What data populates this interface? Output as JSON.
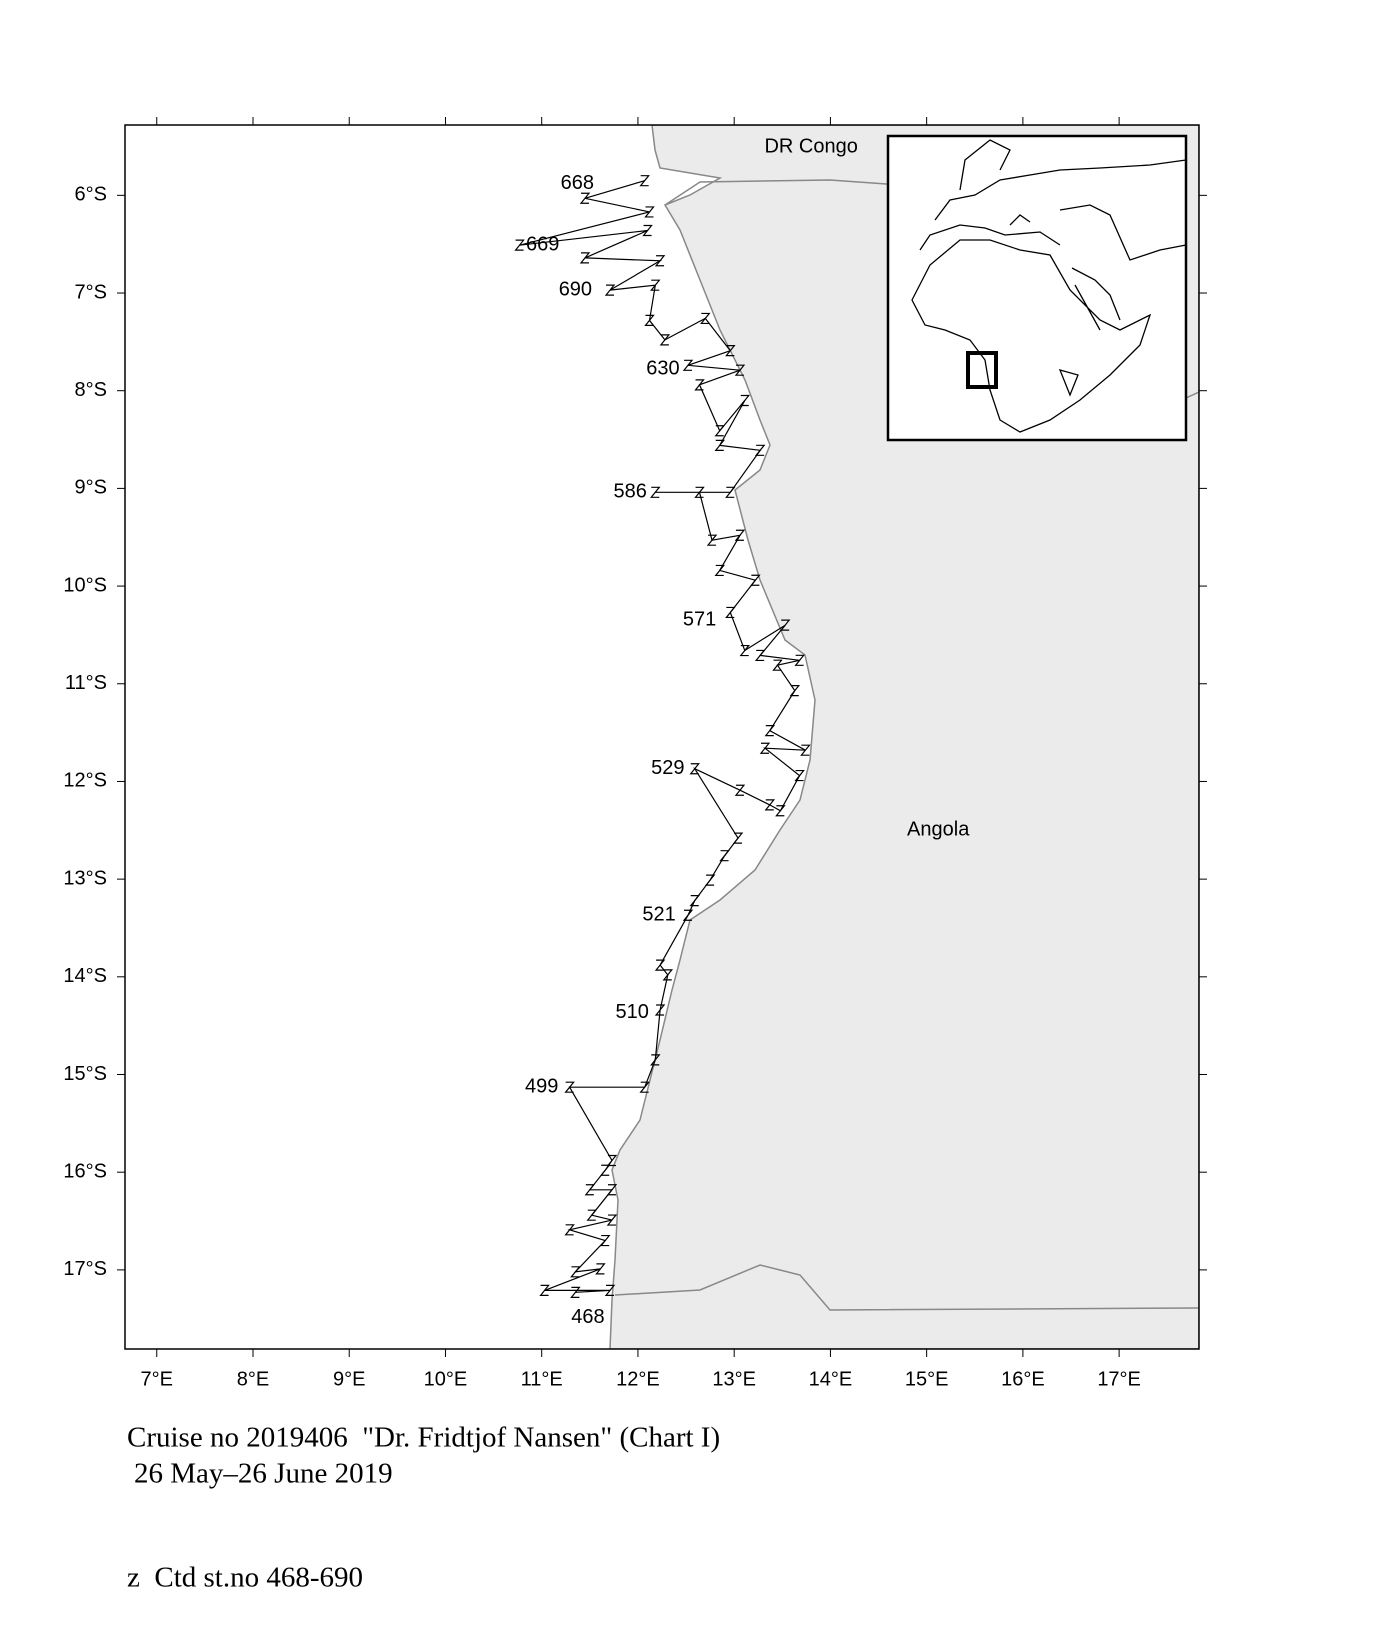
{
  "map": {
    "xlim": [
      6.67,
      17.83
    ],
    "ylim": [
      -17.81,
      -5.28
    ],
    "xticks": [
      {
        "value": 7,
        "label": "7°E"
      },
      {
        "value": 8,
        "label": "8°E"
      },
      {
        "value": 9,
        "label": "9°E"
      },
      {
        "value": 10,
        "label": "10°E"
      },
      {
        "value": 11,
        "label": "11°E"
      },
      {
        "value": 12,
        "label": "12°E"
      },
      {
        "value": 13,
        "label": "13°E"
      },
      {
        "value": 14,
        "label": "14°E"
      },
      {
        "value": 15,
        "label": "15°E"
      },
      {
        "value": 16,
        "label": "16°E"
      },
      {
        "value": 17,
        "label": "17°E"
      }
    ],
    "yticks": [
      {
        "value": -6,
        "label": "6°S"
      },
      {
        "value": -7,
        "label": "7°S"
      },
      {
        "value": -8,
        "label": "8°S"
      },
      {
        "value": -9,
        "label": "9°S"
      },
      {
        "value": -10,
        "label": "10°S"
      },
      {
        "value": -11,
        "label": "11°S"
      },
      {
        "value": -12,
        "label": "12°S"
      },
      {
        "value": -13,
        "label": "13°S"
      },
      {
        "value": -14,
        "label": "14°S"
      },
      {
        "value": -15,
        "label": "15°S"
      },
      {
        "value": -16,
        "label": "16°S"
      },
      {
        "value": -17,
        "label": "17°S"
      }
    ],
    "places": [
      {
        "label": "DR Congo",
        "lon": 13.8,
        "lat": -5.51
      },
      {
        "label": "Angola",
        "lon": 15.12,
        "lat": -12.5
      }
    ],
    "station_labels": [
      {
        "label": "668",
        "lon": 11.37,
        "lat": -5.88
      },
      {
        "label": "669",
        "lon": 11.01,
        "lat": -6.51
      },
      {
        "label": "690",
        "lon": 11.35,
        "lat": -6.97
      },
      {
        "label": "630",
        "lon": 12.26,
        "lat": -7.78
      },
      {
        "label": "586",
        "lon": 11.92,
        "lat": -9.04
      },
      {
        "label": "571",
        "lon": 12.64,
        "lat": -10.35
      },
      {
        "label": "529",
        "lon": 12.31,
        "lat": -11.87
      },
      {
        "label": "521",
        "lon": 12.22,
        "lat": -13.37
      },
      {
        "label": "510",
        "lon": 11.94,
        "lat": -14.37
      },
      {
        "label": "499",
        "lon": 11.0,
        "lat": -15.13
      },
      {
        "label": "468",
        "lon": 11.48,
        "lat": -17.49
      }
    ],
    "stations": {
      "lon": [
        11.35,
        11.71,
        11.03,
        11.61,
        11.35,
        11.66,
        11.29,
        11.73,
        11.52,
        11.73,
        11.5,
        11.66,
        11.73,
        11.29,
        12.07,
        12.18,
        12.23,
        12.31,
        12.23,
        12.52,
        12.59,
        12.75,
        12.9,
        13.04,
        12.59,
        13.06,
        13.37,
        13.48,
        13.68,
        13.32,
        13.74,
        13.37,
        13.63,
        13.45,
        13.68,
        13.27,
        13.53,
        13.11,
        12.96,
        13.22,
        12.85,
        13.06,
        12.77,
        12.64,
        12.18,
        12.96,
        13.27,
        12.85,
        13.11,
        12.85,
        12.64,
        13.06,
        12.52,
        12.96,
        12.7,
        12.28,
        12.12,
        12.18,
        11.71,
        12.23,
        11.45,
        12.1,
        10.77,
        12.12,
        11.45,
        12.07
      ],
      "lat": [
        -17.23,
        -17.21,
        -17.21,
        -16.99,
        -17.02,
        -16.7,
        -16.59,
        -16.49,
        -16.44,
        -16.18,
        -16.18,
        -15.98,
        -15.88,
        -15.13,
        -15.13,
        -14.85,
        -14.34,
        -13.98,
        -13.88,
        -13.37,
        -13.22,
        -13.01,
        -12.76,
        -12.58,
        -11.87,
        -12.09,
        -12.24,
        -12.3,
        -11.94,
        -11.66,
        -11.68,
        -11.48,
        -11.07,
        -10.81,
        -10.76,
        -10.71,
        -10.4,
        -10.66,
        -10.27,
        -9.94,
        -9.84,
        -9.48,
        -9.53,
        -9.04,
        -9.04,
        -9.04,
        -8.61,
        -8.56,
        -8.1,
        -8.41,
        -7.94,
        -7.79,
        -7.74,
        -7.59,
        -7.26,
        -7.48,
        -7.28,
        -6.92,
        -6.97,
        -6.67,
        -6.64,
        -6.36,
        -6.51,
        -6.17,
        -6.03,
        -5.85
      ]
    },
    "caption": [
      "Cruise no 2019406  \"Dr. Fridtjof Nansen\" (Chart I)",
      "26 May–26 June 2019"
    ],
    "legend": "z  Ctd st.no 468-690"
  }
}
